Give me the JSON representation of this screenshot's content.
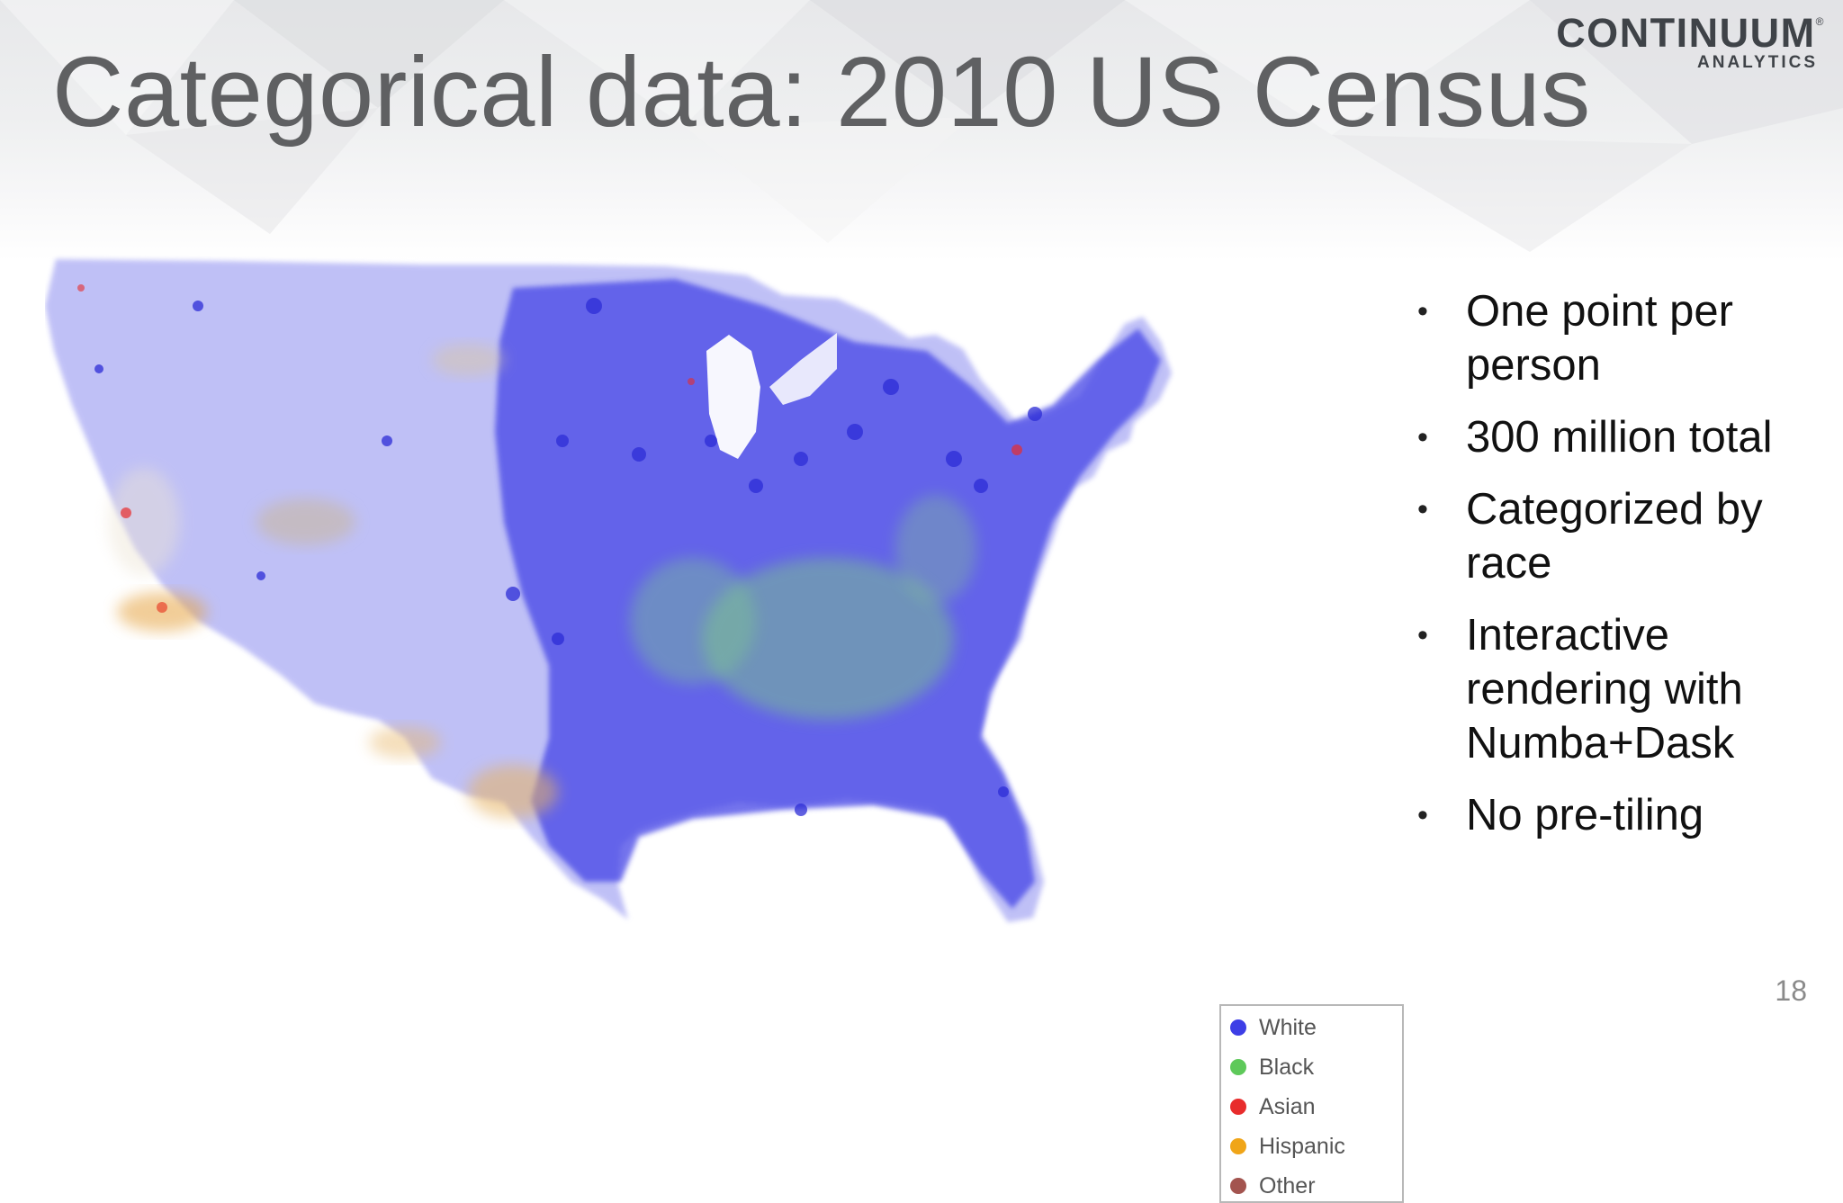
{
  "slide": {
    "title": "Categorical data: 2010 US Census",
    "page_number": "18"
  },
  "logo": {
    "wordmark": "CONTINUUM",
    "registered": "®",
    "subtitle": "ANALYTICS"
  },
  "map": {
    "legend": [
      {
        "label": "White",
        "color": "#3d3ee6"
      },
      {
        "label": "Black",
        "color": "#5ec95a"
      },
      {
        "label": "Asian",
        "color": "#e82c2c"
      },
      {
        "label": "Hispanic",
        "color": "#f0a518"
      },
      {
        "label": "Other",
        "color": "#a3544f"
      }
    ]
  },
  "bullets": [
    "One point per person",
    "300 million total",
    "Categorized by race",
    "Interactive rendering with Numba+Dask",
    "No pre-tiling"
  ]
}
